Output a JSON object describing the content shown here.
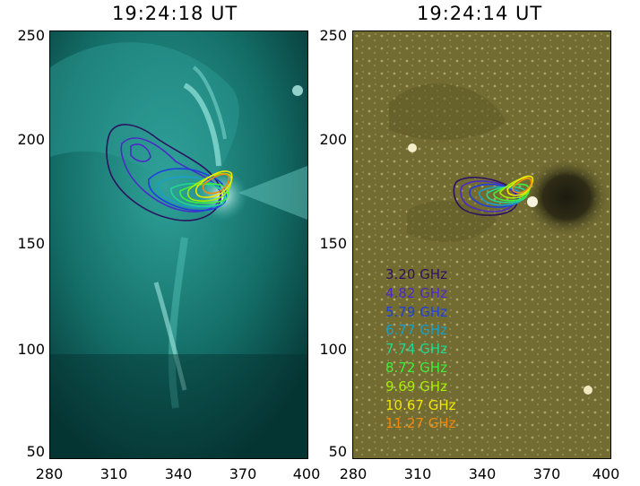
{
  "panels": [
    {
      "title": "19:24:18 UT"
    },
    {
      "title": "19:24:14 UT"
    }
  ],
  "y_ticks": [
    "250",
    "200",
    "150",
    "100",
    "50"
  ],
  "x_ticks": [
    "280",
    "310",
    "340",
    "370",
    "400"
  ],
  "legend": [
    {
      "label": "3.20  GHz",
      "color": "#2a1260"
    },
    {
      "label": "4.82  GHz",
      "color": "#4b2bc8"
    },
    {
      "label": "5.79  GHz",
      "color": "#1e3fe0"
    },
    {
      "label": "6.77  GHz",
      "color": "#1aa0c8"
    },
    {
      "label": "7.74  GHz",
      "color": "#22d890"
    },
    {
      "label": "8.72  GHz",
      "color": "#3cf03c"
    },
    {
      "label": "9.69  GHz",
      "color": "#a6f000"
    },
    {
      "label": "10.67  GHz",
      "color": "#f0e800"
    },
    {
      "label": "11.27  GHz",
      "color": "#f08a10"
    }
  ],
  "colors": {
    "panel_left_bg": "#0d5b57",
    "panel_right_bg": "#7a7436"
  }
}
